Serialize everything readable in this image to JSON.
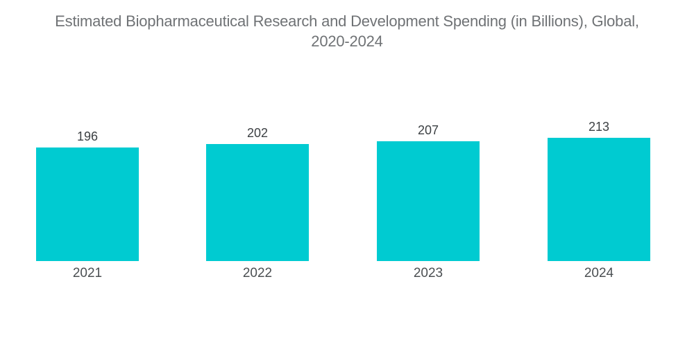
{
  "title": {
    "line1": "Estimated Biopharmaceutical Research and Development Spending (in Billions), Global,",
    "line2": "2020-2024"
  },
  "chart_data": {
    "type": "bar",
    "title": "Estimated Biopharmaceutical Research and Development Spending (in Billions), Global, 2020-2024",
    "categories": [
      "2021",
      "2022",
      "2023",
      "2024"
    ],
    "values": [
      196,
      202,
      207,
      213
    ],
    "xlabel": "",
    "ylabel": "",
    "bar_color": "#00cbd1",
    "background_color": "#ffffff",
    "title_color": "#6f7275",
    "value_label_color": "#3c4043",
    "category_label_color": "#4b4f52",
    "axes_visible": false,
    "gridlines": false,
    "legend": "none",
    "value_labels_position": "above-bars",
    "category_labels_position": "below-bars"
  }
}
